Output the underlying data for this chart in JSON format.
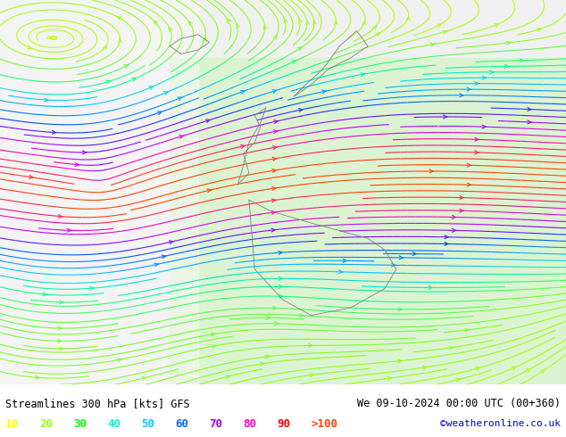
{
  "title_left": "Streamlines 300 hPa [kts] GFS",
  "title_right": "We 09-10-2024 00:00 UTC (00+360)",
  "credit": "©weatheronline.co.uk",
  "legend_values": [
    10,
    20,
    30,
    40,
    50,
    60,
    70,
    80,
    90
  ],
  "legend_label_gt": ">100",
  "legend_colors": [
    "#ffff00",
    "#99ff00",
    "#00ff00",
    "#00ffcc",
    "#00ccff",
    "#0066ff",
    "#9900ff",
    "#ff00cc",
    "#ff0000",
    "#ff4400"
  ],
  "background_color": "#ffffff",
  "footer_bg": "#ffffff",
  "map_bg_land": "#e8ffe8",
  "map_bg_sea": "#ffffff",
  "figsize": [
    6.34,
    4.9
  ],
  "dpi": 100,
  "speed_colors": {
    "10": "#ccff00",
    "20": "#66ff33",
    "30": "#00ff99",
    "40": "#00ccff",
    "50": "#0088ff",
    "60": "#0044ff",
    "70": "#8800ff",
    "80": "#cc00ff",
    "90": "#ff00aa",
    "100": "#ff4400"
  }
}
